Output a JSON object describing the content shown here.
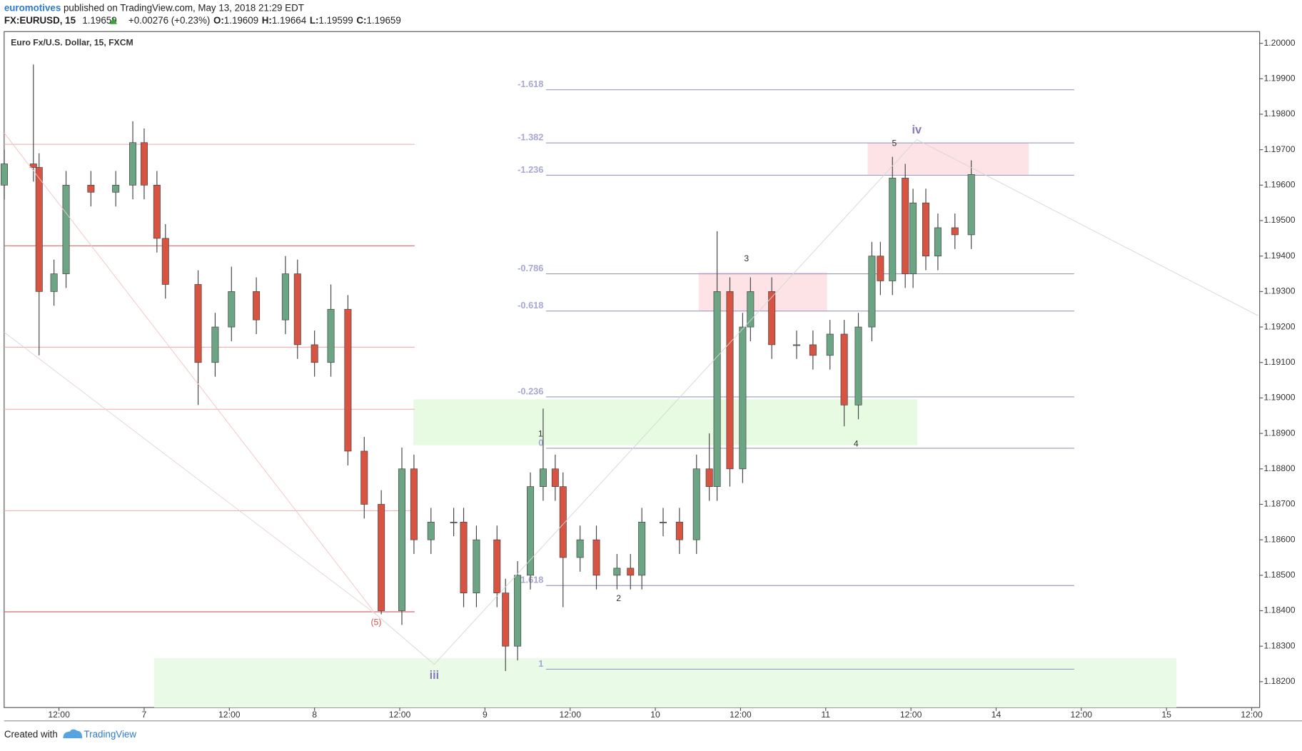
{
  "header": {
    "author": "euromotives",
    "published": "published on TradingView.com, May 13, 2018 21:29 EDT",
    "symbol": "FX:EURUSD, 15",
    "last": "1.19659",
    "change": "+0.00276 (+0.23%)",
    "o_label": "O:",
    "o": "1.19609",
    "h_label": "H:",
    "h": "1.19664",
    "l_label": "L:",
    "l": "1.19599",
    "c_label": "C:",
    "c": "1.19659"
  },
  "footer": {
    "created": "Created with",
    "brand": "TradingView"
  },
  "chart_data": {
    "type": "candlestick",
    "title": "Euro Fx/U.S. Dollar, 15, FXCM",
    "up_color": "#6ba583",
    "down_color": "#d75442",
    "x": [
      4.3,
      8.4,
      9.2,
      11.3,
      13,
      16.5,
      20,
      22.4,
      24,
      25.8,
      27,
      31.6,
      34,
      36.3,
      39.8,
      43.9,
      45.6,
      48,
      50.3,
      52.7,
      55,
      57.4,
      60.3,
      62,
      64.4,
      67.6,
      69,
      70.8,
      73.7,
      74.9,
      76.6,
      78.4,
      80.2,
      81.9,
      83,
      85.4,
      87.7,
      90.6,
      92.5,
      94.1,
      97.1,
      99.4,
      101.8,
      103.6,
      104.7,
      106.5,
      108.3,
      109.4,
      112.4,
      115.9,
      118.2,
      120.6,
      122.6,
      124.6,
      126.5,
      127.7,
      129.4,
      131.2,
      132.3,
      134.1,
      135.8,
      138.2,
      140.5
    ],
    "open": [
      1.196,
      1.1966,
      1.1965,
      1.193,
      1.1935,
      1.196,
      1.1958,
      1.196,
      1.1972,
      1.196,
      1.1945,
      1.1932,
      1.191,
      1.192,
      1.193,
      1.1922,
      1.1935,
      1.1915,
      1.191,
      1.1925,
      1.1885,
      1.187,
      1.184,
      1.188,
      1.186,
      1.1865,
      1.1865,
      1.1845,
      1.186,
      1.1845,
      1.183,
      1.185,
      1.1875,
      1.188,
      1.1875,
      1.1855,
      1.186,
      1.185,
      1.1852,
      1.185,
      1.1865,
      1.1865,
      1.186,
      1.188,
      1.1875,
      1.193,
      1.188,
      1.192,
      1.193,
      1.1915,
      1.1915,
      1.1912,
      1.1918,
      1.1898,
      1.192,
      1.194,
      1.1933,
      1.1962,
      1.1935,
      1.1955,
      1.194,
      1.1948,
      1.1946
    ],
    "high": [
      1.197,
      1.1994,
      1.1969,
      1.1939,
      1.1964,
      1.1964,
      1.1964,
      1.1978,
      1.1976,
      1.1964,
      1.1949,
      1.1936,
      1.1924,
      1.1937,
      1.1934,
      1.194,
      1.1939,
      1.1919,
      1.1932,
      1.1929,
      1.1889,
      1.1874,
      1.1886,
      1.1884,
      1.1869,
      1.1869,
      1.1869,
      1.1864,
      1.1864,
      1.1849,
      1.1854,
      1.1879,
      1.1897,
      1.1884,
      1.1879,
      1.1864,
      1.1864,
      1.1856,
      1.1856,
      1.1869,
      1.1869,
      1.1869,
      1.1884,
      1.189,
      1.1947,
      1.1934,
      1.1924,
      1.1934,
      1.1934,
      1.1919,
      1.1919,
      1.1922,
      1.1922,
      1.1924,
      1.1944,
      1.1944,
      1.1968,
      1.1966,
      1.1959,
      1.1959,
      1.1952,
      1.1952,
      1.1967
    ],
    "low": [
      1.1956,
      1.1961,
      1.1912,
      1.1926,
      1.1931,
      1.1954,
      1.1954,
      1.1956,
      1.1956,
      1.1941,
      1.1928,
      1.1898,
      1.1906,
      1.1916,
      1.1918,
      1.1918,
      1.1911,
      1.1906,
      1.1906,
      1.1881,
      1.1866,
      1.1839,
      1.1836,
      1.1856,
      1.1856,
      1.1861,
      1.1841,
      1.1841,
      1.1841,
      1.1823,
      1.1826,
      1.1846,
      1.1871,
      1.1871,
      1.1841,
      1.1851,
      1.1846,
      1.1846,
      1.1846,
      1.1846,
      1.1861,
      1.1856,
      1.1856,
      1.1871,
      1.1871,
      1.1875,
      1.1876,
      1.1916,
      1.1911,
      1.1911,
      1.1908,
      1.1908,
      1.1892,
      1.1894,
      1.1916,
      1.1929,
      1.1929,
      1.1931,
      1.1931,
      1.1936,
      1.1936,
      1.1942,
      1.1942
    ],
    "close": [
      1.1966,
      1.1965,
      1.193,
      1.1935,
      1.196,
      1.1958,
      1.196,
      1.1972,
      1.196,
      1.1945,
      1.1932,
      1.191,
      1.192,
      1.193,
      1.1922,
      1.1935,
      1.1915,
      1.191,
      1.1925,
      1.1885,
      1.187,
      1.184,
      1.188,
      1.186,
      1.1865,
      1.1865,
      1.1845,
      1.186,
      1.1845,
      1.183,
      1.185,
      1.1875,
      1.188,
      1.1875,
      1.1855,
      1.186,
      1.185,
      1.1852,
      1.185,
      1.1865,
      1.1865,
      1.186,
      1.188,
      1.1875,
      1.193,
      1.188,
      1.192,
      1.193,
      1.1915,
      1.1915,
      1.1912,
      1.1918,
      1.1898,
      1.192,
      1.194,
      1.1933,
      1.1962,
      1.1935,
      1.1955,
      1.194,
      1.1948,
      1.1946,
      1.1963
    ],
    "xlim": [
      4.28,
      181.12
    ],
    "xticks": [
      {
        "value": 12,
        "label": "12:00"
      },
      {
        "value": 24,
        "label": "7"
      },
      {
        "value": 36,
        "label": "12:00"
      },
      {
        "value": 48,
        "label": "8"
      },
      {
        "value": 60,
        "label": "12:00"
      },
      {
        "value": 72,
        "label": "9"
      },
      {
        "value": 84,
        "label": "12:00"
      },
      {
        "value": 96,
        "label": "10"
      },
      {
        "value": 108,
        "label": "12:00"
      },
      {
        "value": 120,
        "label": "11"
      },
      {
        "value": 132,
        "label": "12:00"
      },
      {
        "value": 144,
        "label": "14"
      },
      {
        "value": 156,
        "label": "12:00"
      },
      {
        "value": 168,
        "label": "15"
      },
      {
        "value": 180,
        "label": "12:00"
      }
    ],
    "ylim": [
      1.18127,
      1.20033
    ],
    "yticks": [
      {
        "value": 1.2,
        "label": "1.20000"
      },
      {
        "value": 1.199,
        "label": "1.19900"
      },
      {
        "value": 1.198,
        "label": "1.19800"
      },
      {
        "value": 1.197,
        "label": "1.19700"
      },
      {
        "value": 1.196,
        "label": "1.19600"
      },
      {
        "value": 1.195,
        "label": "1.19500"
      },
      {
        "value": 1.194,
        "label": "1.19400"
      },
      {
        "value": 1.193,
        "label": "1.19300"
      },
      {
        "value": 1.192,
        "label": "1.19200"
      },
      {
        "value": 1.191,
        "label": "1.19100"
      },
      {
        "value": 1.19,
        "label": "1.19000"
      },
      {
        "value": 1.189,
        "label": "1.18900"
      },
      {
        "value": 1.188,
        "label": "1.18800"
      },
      {
        "value": 1.187,
        "label": "1.18700"
      },
      {
        "value": 1.186,
        "label": "1.18600"
      },
      {
        "value": 1.185,
        "label": "1.18500"
      },
      {
        "value": 1.184,
        "label": "1.18400"
      },
      {
        "value": 1.183,
        "label": "1.18300"
      },
      {
        "value": 1.182,
        "label": "1.18200"
      }
    ],
    "level_x": [
      4.28,
      62.1
    ],
    "levels": [
      {
        "value": 1.19715,
        "color": "#f3b4b4"
      },
      {
        "value": 1.19429,
        "color": "#d86a6a"
      },
      {
        "value": 1.19143,
        "color": "#f3b4b4"
      },
      {
        "value": 1.18968,
        "color": "#f3b4b4"
      },
      {
        "value": 1.18682,
        "color": "#f3b4b4"
      },
      {
        "value": 1.18397,
        "color": "#d86a6a"
      }
    ],
    "fib_x": [
      80.6,
      155
    ],
    "fib_color": "#9a9ac8",
    "fib": [
      {
        "value": 1.19869,
        "label": "-1.618"
      },
      {
        "value": 1.19719,
        "label": "-1.382"
      },
      {
        "value": 1.19628,
        "label": "-1.236"
      },
      {
        "value": 1.1935,
        "label": "-0.786"
      },
      {
        "value": 1.19245,
        "label": "-0.618"
      },
      {
        "value": 1.19003,
        "label": "-0.236"
      },
      {
        "value": 1.18858,
        "label": "0"
      },
      {
        "value": 1.18471,
        "label": "1.618"
      },
      {
        "value": 1.18235,
        "label": "1"
      }
    ],
    "zones": [
      {
        "x": [
          25.4,
          169.4
        ],
        "y": [
          1.18127,
          1.18266
        ],
        "color": "#e9fbe6"
      },
      {
        "x": [
          61.9,
          132.9
        ],
        "y": [
          1.18867,
          1.18996
        ],
        "color": "#e6fbe2"
      },
      {
        "x": [
          102.1,
          120.2
        ],
        "y": [
          1.19244,
          1.19354
        ],
        "color": "#fde3e5"
      },
      {
        "x": [
          125.9,
          148.6
        ],
        "y": [
          1.1963,
          1.19719
        ],
        "color": "#fde3e5"
      }
    ],
    "annotations": [
      "(5)",
      "iii",
      "1",
      "2",
      "3",
      "4",
      "5",
      "iv"
    ]
  }
}
